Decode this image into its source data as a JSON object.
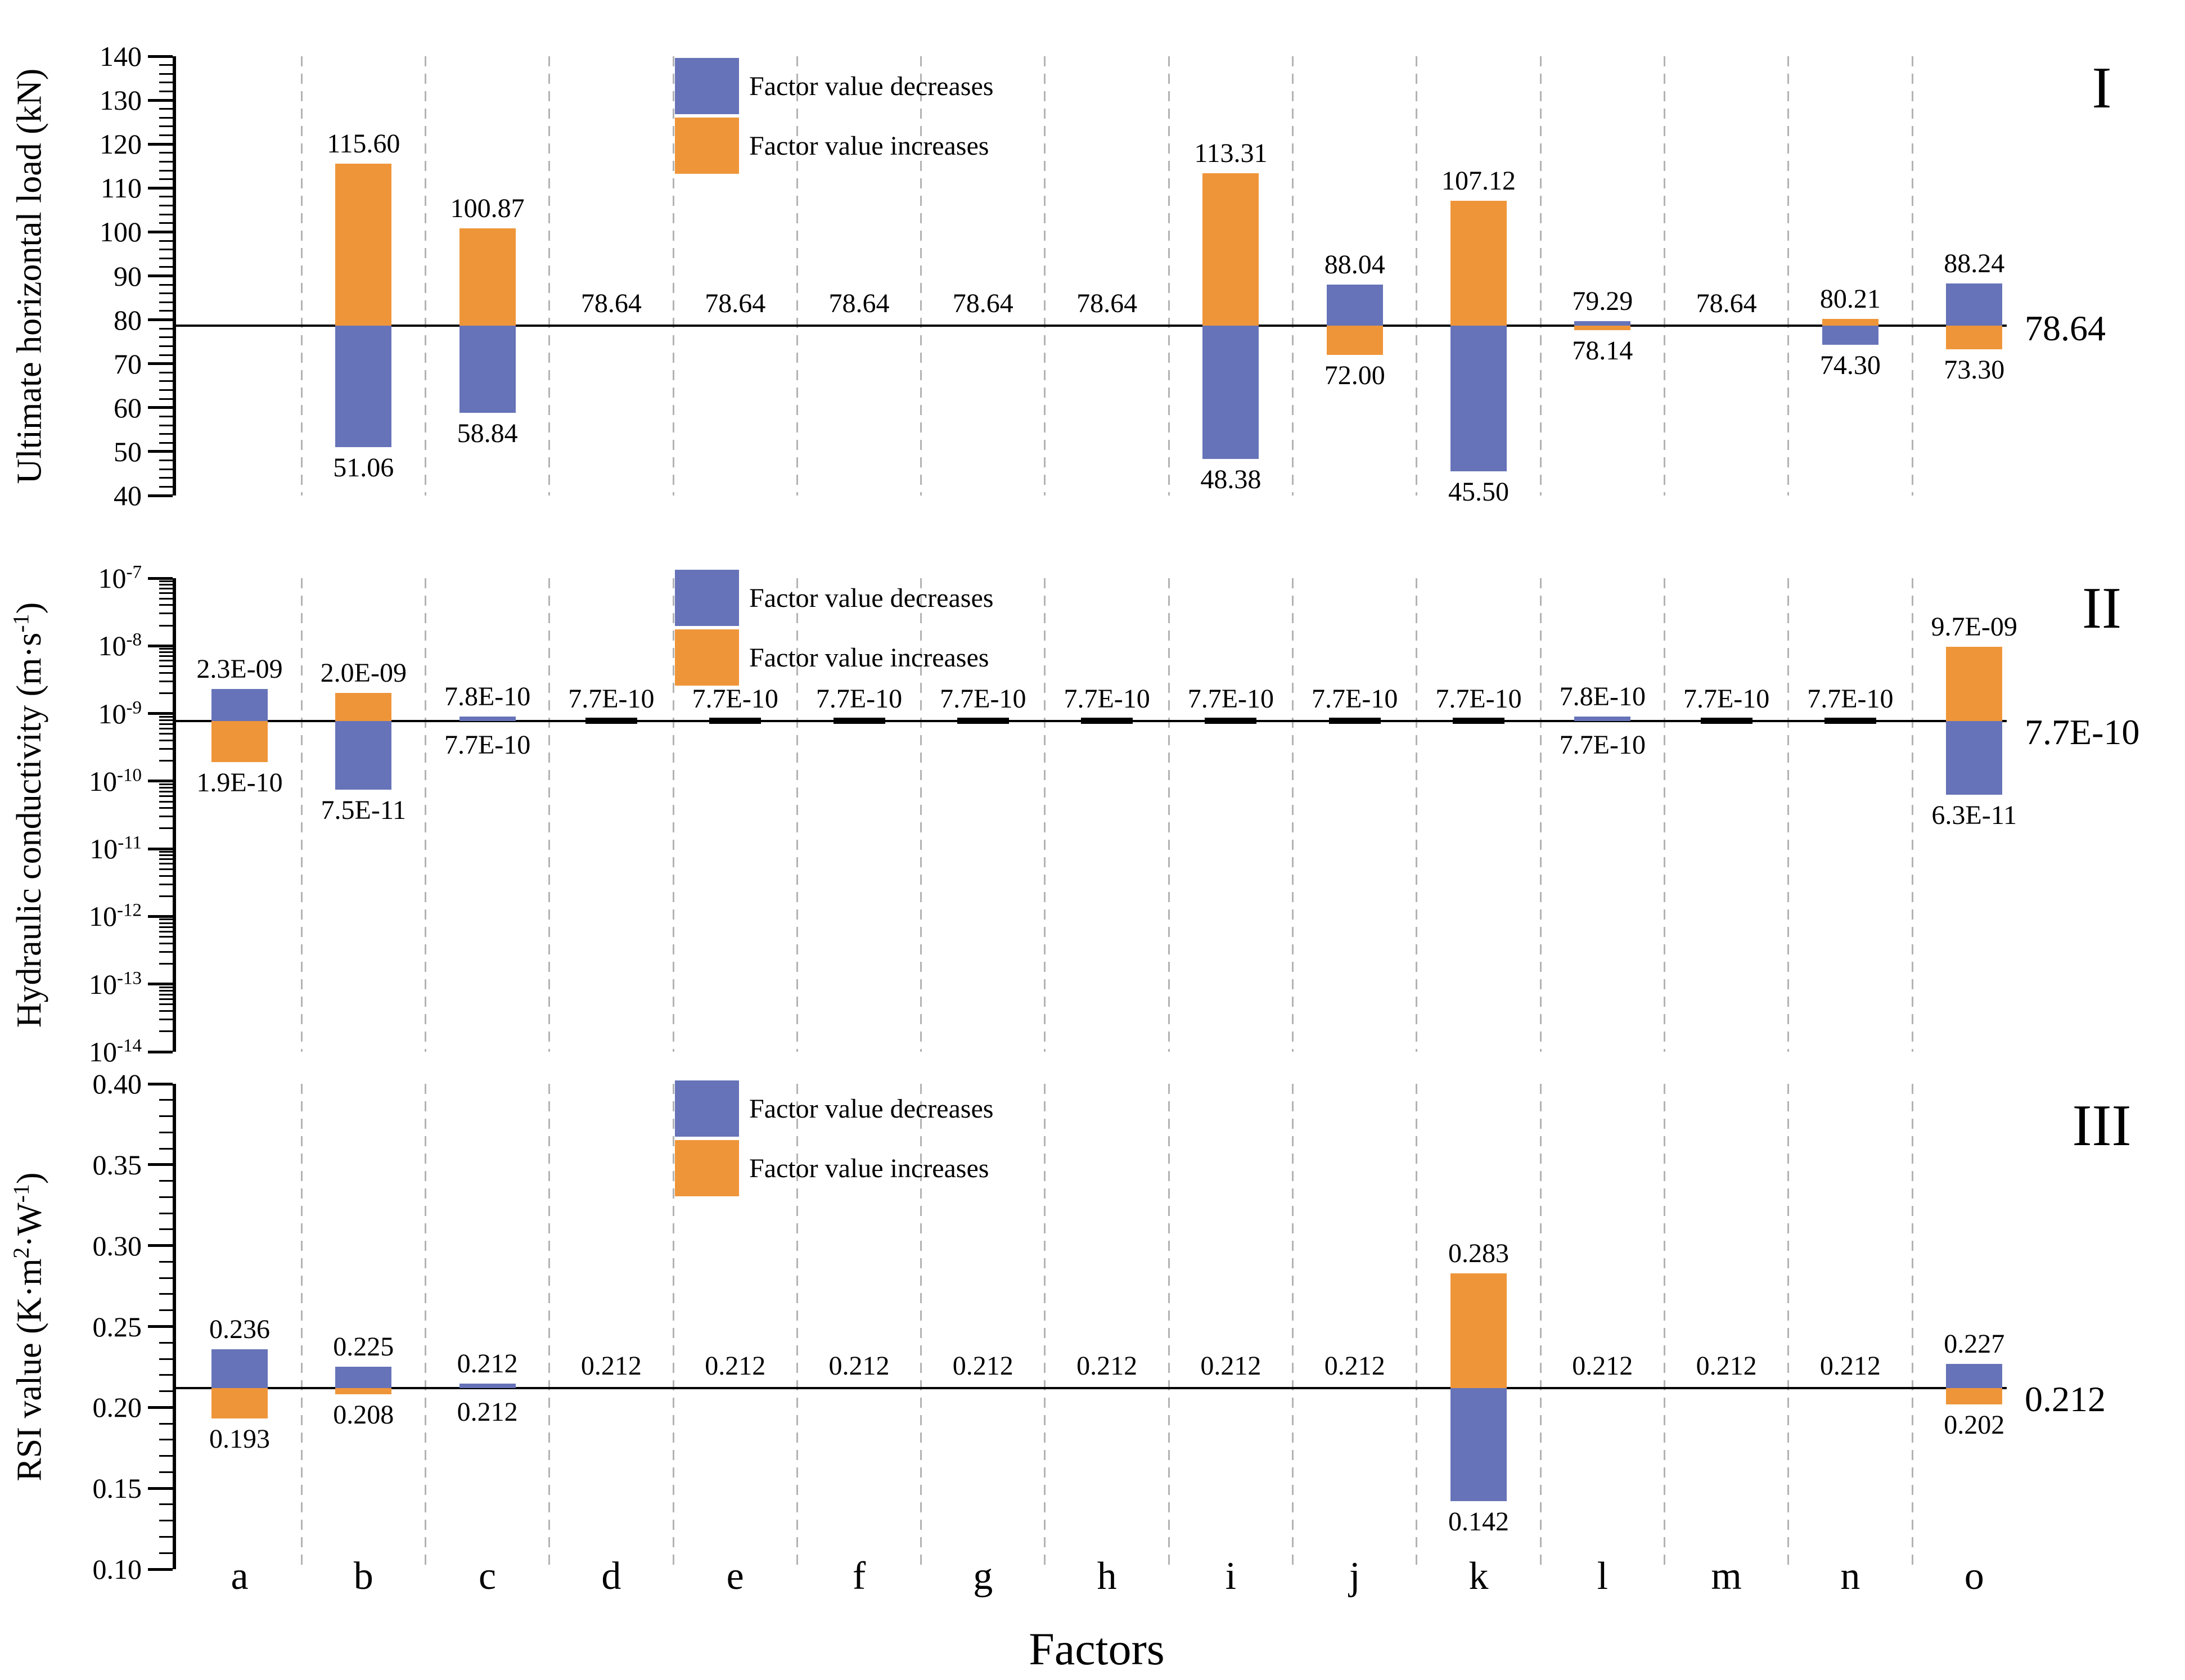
{
  "colors": {
    "decrease": "#6673b8",
    "increase": "#ef9539",
    "baseline": "#000000",
    "gridline": "#b3b3b3",
    "tick_marker": "#000000"
  },
  "legend": {
    "items": [
      {
        "type": "decrease",
        "label": "Factor value decreases"
      },
      {
        "type": "increase",
        "label": "Factor value increases"
      }
    ]
  },
  "xaxis": {
    "title": "Factors",
    "categories": [
      "a",
      "b",
      "c",
      "d",
      "e",
      "f",
      "g",
      "h",
      "i",
      "j",
      "k",
      "l",
      "m",
      "n",
      "o"
    ]
  },
  "chart_data": [
    {
      "type": "bar",
      "panel": "I",
      "marker": "I",
      "ylabel_parts": [
        {
          "text": "Ultimate horizontal load (kN)"
        }
      ],
      "axis": {
        "scale": "linear",
        "min": 40,
        "max": 140,
        "major_step": 10,
        "minor_step": 2,
        "major_ticks": [
          140,
          130,
          120,
          110,
          100,
          90,
          80,
          70,
          60,
          50,
          40
        ],
        "major_labels": [
          "140",
          "130",
          "120",
          "110",
          "100",
          "90",
          "80",
          "70",
          "60",
          "50",
          "40"
        ]
      },
      "baseline": {
        "value": 78.64,
        "label": "78.64"
      },
      "bars": [
        {
          "factor": "a"
        },
        {
          "factor": "b",
          "up": {
            "value": 115.6,
            "label": "115.60",
            "type": "increase"
          },
          "down": {
            "value": 51.06,
            "label": "51.06",
            "type": "decrease"
          }
        },
        {
          "factor": "c",
          "up": {
            "value": 100.87,
            "label": "100.87",
            "type": "increase"
          },
          "down": {
            "value": 58.84,
            "label": "58.84",
            "type": "decrease"
          }
        },
        {
          "factor": "d",
          "baseline_label": "78.64"
        },
        {
          "factor": "e",
          "baseline_label": "78.64"
        },
        {
          "factor": "f",
          "baseline_label": "78.64"
        },
        {
          "factor": "g",
          "baseline_label": "78.64"
        },
        {
          "factor": "h",
          "baseline_label": "78.64"
        },
        {
          "factor": "i",
          "up": {
            "value": 113.31,
            "label": "113.31",
            "type": "increase"
          },
          "down": {
            "value": 48.38,
            "label": "48.38",
            "type": "decrease"
          }
        },
        {
          "factor": "j",
          "up": {
            "value": 88.04,
            "label": "88.04",
            "type": "decrease"
          },
          "down": {
            "value": 72.0,
            "label": "72.00",
            "type": "increase"
          }
        },
        {
          "factor": "k",
          "up": {
            "value": 107.12,
            "label": "107.12",
            "type": "increase"
          },
          "down": {
            "value": 45.5,
            "label": "45.50",
            "type": "decrease"
          }
        },
        {
          "factor": "l",
          "up": {
            "value": 79.29,
            "label": "79.29",
            "type": "decrease"
          },
          "down": {
            "value": 78.14,
            "label": "78.14",
            "type": "increase"
          }
        },
        {
          "factor": "m",
          "baseline_label": "78.64"
        },
        {
          "factor": "n",
          "up": {
            "value": 80.21,
            "label": "80.21",
            "type": "increase"
          },
          "down": {
            "value": 74.3,
            "label": "74.30",
            "type": "decrease"
          }
        },
        {
          "factor": "o",
          "up": {
            "value": 88.24,
            "label": "88.24",
            "type": "decrease"
          },
          "down": {
            "value": 73.3,
            "label": "73.30",
            "type": "increase"
          }
        }
      ]
    },
    {
      "type": "bar",
      "panel": "II",
      "marker": "II",
      "ylabel_parts": [
        {
          "text": "Hydraulic conductivity (m·s"
        },
        {
          "sup": "-1"
        },
        {
          "text": ")"
        }
      ],
      "axis": {
        "scale": "log",
        "min": 1e-14,
        "max": 1e-07,
        "tick_exponents": [
          -7,
          -8,
          -9,
          -10,
          -11,
          -12,
          -13,
          -14
        ]
      },
      "baseline": {
        "value": 7.7e-10,
        "label": "7.7E-10"
      },
      "bars": [
        {
          "factor": "a",
          "up": {
            "value": 2.3e-09,
            "label": "2.3E-09",
            "type": "decrease"
          },
          "down": {
            "value": 1.9e-10,
            "label": "1.9E-10",
            "type": "increase"
          }
        },
        {
          "factor": "b",
          "up": {
            "value": 2e-09,
            "label": "2.0E-09",
            "type": "increase"
          },
          "down": {
            "value": 7.5e-11,
            "label": "7.5E-11",
            "type": "decrease"
          }
        },
        {
          "factor": "c",
          "up": {
            "value": 7.8e-10,
            "label": "7.8E-10",
            "type": "decrease"
          },
          "below_label": "7.7E-10"
        },
        {
          "factor": "d",
          "baseline_label": "7.7E-10",
          "tick_marker": true
        },
        {
          "factor": "e",
          "baseline_label": "7.7E-10",
          "tick_marker": true
        },
        {
          "factor": "f",
          "baseline_label": "7.7E-10",
          "tick_marker": true
        },
        {
          "factor": "g",
          "baseline_label": "7.7E-10",
          "tick_marker": true
        },
        {
          "factor": "h",
          "baseline_label": "7.7E-10",
          "tick_marker": true
        },
        {
          "factor": "i",
          "baseline_label": "7.7E-10",
          "tick_marker": true
        },
        {
          "factor": "j",
          "baseline_label": "7.7E-10",
          "tick_marker": true
        },
        {
          "factor": "k",
          "baseline_label": "7.7E-10",
          "tick_marker": true
        },
        {
          "factor": "l",
          "up": {
            "value": 7.8e-10,
            "label": "7.8E-10",
            "type": "decrease"
          },
          "below_label": "7.7E-10"
        },
        {
          "factor": "m",
          "baseline_label": "7.7E-10",
          "tick_marker": true
        },
        {
          "factor": "n",
          "baseline_label": "7.7E-10",
          "tick_marker": true
        },
        {
          "factor": "o",
          "up": {
            "value": 9.7e-09,
            "label": "9.7E-09",
            "type": "increase"
          },
          "down": {
            "value": 6.3e-11,
            "label": "6.3E-11",
            "type": "decrease"
          }
        }
      ]
    },
    {
      "type": "bar",
      "panel": "III",
      "marker": "III",
      "ylabel_parts": [
        {
          "text": "RSI value (K·m"
        },
        {
          "sup": "2"
        },
        {
          "text": "·W"
        },
        {
          "sup": "-1"
        },
        {
          "text": ")"
        }
      ],
      "axis": {
        "scale": "linear",
        "min": 0.1,
        "max": 0.4,
        "major_step": 0.05,
        "minor_step": 0.01,
        "major_ticks": [
          0.4,
          0.35,
          0.3,
          0.25,
          0.2,
          0.15,
          0.1
        ],
        "major_labels": [
          "0.40",
          "0.35",
          "0.30",
          "0.25",
          "0.20",
          "0.15",
          "0.10"
        ]
      },
      "baseline": {
        "value": 0.212,
        "label": "0.212"
      },
      "bars": [
        {
          "factor": "a",
          "up": {
            "value": 0.236,
            "label": "0.236",
            "type": "decrease"
          },
          "down": {
            "value": 0.193,
            "label": "0.193",
            "type": "increase"
          }
        },
        {
          "factor": "b",
          "up": {
            "value": 0.225,
            "label": "0.225",
            "type": "decrease"
          },
          "down": {
            "value": 0.208,
            "label": "0.208",
            "type": "increase"
          }
        },
        {
          "factor": "c",
          "up": {
            "value": 0.212,
            "label": "0.212",
            "type": "decrease"
          },
          "below_label": "0.212"
        },
        {
          "factor": "d",
          "baseline_label": "0.212"
        },
        {
          "factor": "e",
          "baseline_label": "0.212"
        },
        {
          "factor": "f",
          "baseline_label": "0.212"
        },
        {
          "factor": "g",
          "baseline_label": "0.212"
        },
        {
          "factor": "h",
          "baseline_label": "0.212"
        },
        {
          "factor": "i",
          "baseline_label": "0.212"
        },
        {
          "factor": "j",
          "baseline_label": "0.212"
        },
        {
          "factor": "k",
          "up": {
            "value": 0.283,
            "label": "0.283",
            "type": "increase"
          },
          "down": {
            "value": 0.142,
            "label": "0.142",
            "type": "decrease"
          }
        },
        {
          "factor": "l",
          "baseline_label": "0.212"
        },
        {
          "factor": "m",
          "baseline_label": "0.212"
        },
        {
          "factor": "n",
          "baseline_label": "0.212"
        },
        {
          "factor": "o",
          "up": {
            "value": 0.227,
            "label": "0.227",
            "type": "decrease"
          },
          "down": {
            "value": 0.202,
            "label": "0.202",
            "type": "increase"
          }
        }
      ]
    }
  ]
}
